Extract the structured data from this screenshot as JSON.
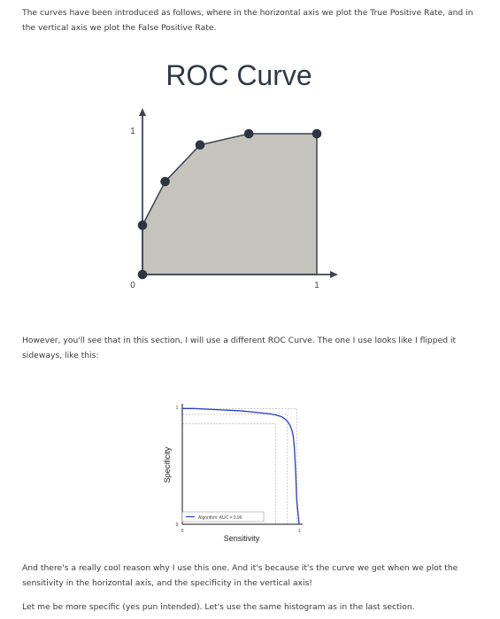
{
  "paragraphs": {
    "p1": "The curves have been introduced as follows, where in the horizontal axis we plot the True Positive Rate, and in the vertical axis we plot the False Positive Rate.",
    "p2": "However, you'll see that in this section, I will use a different ROC Curve. The one I use looks like I flipped it sideways, like this:",
    "p3": "And there's a really cool reason why I use this one. And it's because it's the curve we get when we plot the sensitivity in the horizontal axis, and the specificity in the vertical axis!",
    "p4": "Let me be more specific (yes pun intended). Let's use the same histogram as in the last section."
  },
  "chart_data": [
    {
      "type": "area",
      "title": "ROC Curve",
      "xlabel": "",
      "ylabel": "",
      "xlim": [
        0,
        1
      ],
      "ylim": [
        0,
        1
      ],
      "x_ticks": [
        "0",
        "1"
      ],
      "y_ticks": [
        "1"
      ],
      "points": [
        {
          "x": 0,
          "y": 0
        },
        {
          "x": 0,
          "y": 0.35
        },
        {
          "x": 0.13,
          "y": 0.66
        },
        {
          "x": 0.33,
          "y": 0.92
        },
        {
          "x": 0.61,
          "y": 1
        },
        {
          "x": 1,
          "y": 1
        }
      ],
      "fill_color": "#c4c4bc",
      "line_color": "#3d4550",
      "point_color": "#2e3540"
    },
    {
      "type": "line",
      "title": "",
      "xlabel": "Sensitivity",
      "ylabel": "Specificity",
      "xlim": [
        0,
        1
      ],
      "ylim": [
        0,
        1
      ],
      "x_ticks": [
        "0",
        "1"
      ],
      "y_ticks": [
        "0",
        "1"
      ],
      "legend": "Algorithm: AUC = 0.96",
      "legend_position": "bottom-left",
      "series": [
        {
          "name": "Algorithm: AUC = 0.96",
          "color": "#2a3cc8",
          "x": [
            0,
            0.1,
            0.2,
            0.3,
            0.4,
            0.5,
            0.6,
            0.7,
            0.75,
            0.8,
            0.85,
            0.88,
            0.9,
            0.92,
            0.94,
            0.95,
            0.96,
            0.97,
            0.98,
            1
          ],
          "y": [
            0.99,
            0.99,
            0.985,
            0.98,
            0.975,
            0.97,
            0.96,
            0.95,
            0.945,
            0.935,
            0.92,
            0.9,
            0.88,
            0.85,
            0.8,
            0.75,
            0.65,
            0.45,
            0.2,
            0
          ]
        }
      ],
      "reference_lines": [
        {
          "x": 0.8,
          "y": 0.86
        },
        {
          "x": 0.9,
          "y": 0.94
        },
        {
          "x": 0.98,
          "y": 0.99
        }
      ]
    }
  ]
}
